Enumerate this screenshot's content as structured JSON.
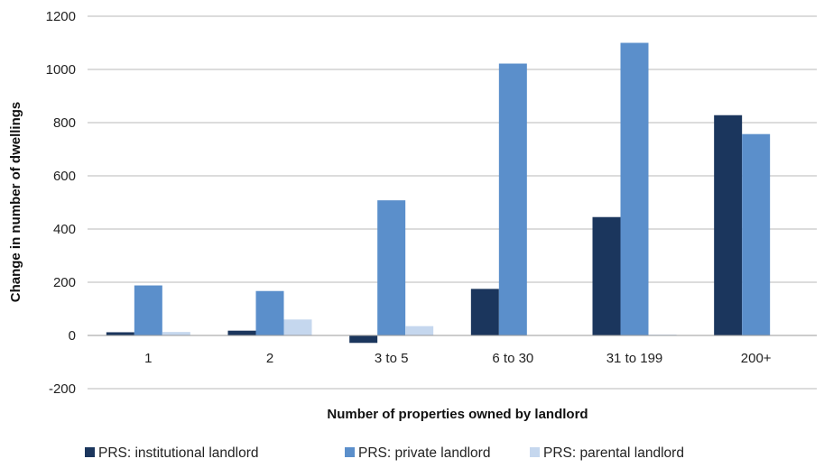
{
  "chart_data": {
    "type": "bar",
    "title": "",
    "xlabel": "Number of properties owned by landlord",
    "ylabel": "Change in number of dwellings",
    "categories": [
      "1",
      "2",
      "3 to 5",
      "6 to 30",
      "31 to 199",
      "200+"
    ],
    "series": [
      {
        "name": "PRS: institutional landlord",
        "color": "#1b365d",
        "values": [
          12,
          18,
          -28,
          175,
          445,
          828
        ]
      },
      {
        "name": "PRS: private landlord",
        "color": "#5b8fcb",
        "values": [
          188,
          167,
          508,
          1022,
          1100,
          757
        ]
      },
      {
        "name": "PRS: parental landlord",
        "color": "#c5d7ee",
        "values": [
          13,
          60,
          35,
          0,
          3,
          0
        ]
      }
    ],
    "ylim": [
      -200,
      1200
    ],
    "yticks": [
      "-200",
      "0",
      "200",
      "400",
      "600",
      "800",
      "1000",
      "1200"
    ],
    "grid": true,
    "legend": "bottom"
  }
}
